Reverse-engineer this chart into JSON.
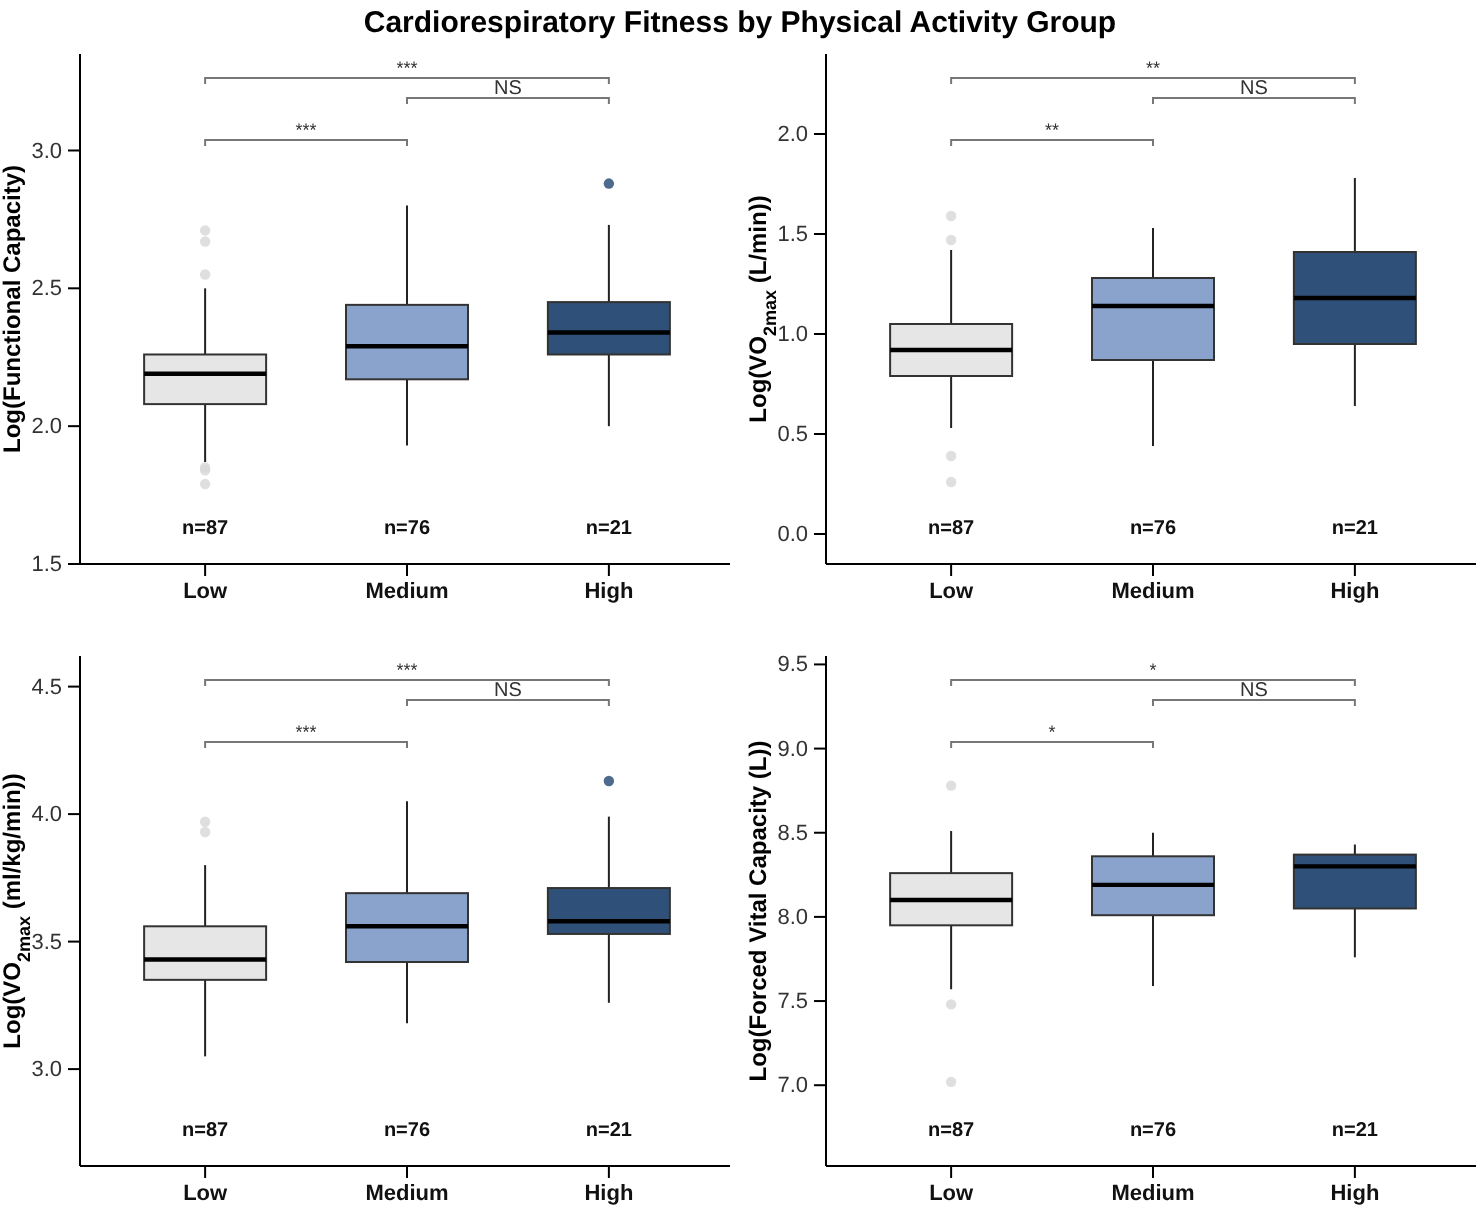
{
  "chart_data": [
    {
      "type": "box",
      "title": "Cardiorespiratory Fitness by Physical Activity Group",
      "ylabel": "Log(Functional Capacity)",
      "categories": [
        "Low",
        "Medium",
        "High"
      ],
      "colors": [
        "#e6e6e6",
        "#8aa3cc",
        "#2f5078"
      ],
      "ylim": [
        1.5,
        3.35
      ],
      "yticks": [
        1.5,
        {
          "value": 2,
          "label": "2.0"
        },
        2.5,
        {
          "value": 3,
          "label": "3.0"
        }
      ],
      "boxes": [
        {
          "low": 1.87,
          "q1": 2.08,
          "median": 2.19,
          "q3": 2.26,
          "high": 2.5,
          "outliers": [
            1.79,
            1.84,
            1.85,
            2.55,
            2.67,
            2.71
          ]
        },
        {
          "low": 1.93,
          "q1": 2.17,
          "median": 2.29,
          "q3": 2.44,
          "high": 2.8
        },
        {
          "low": 2.0,
          "q1": 2.26,
          "median": 2.34,
          "q3": 2.45,
          "high": 2.73,
          "outliers": [
            2.88
          ]
        }
      ],
      "annotations": [
        "***",
        "***",
        "NS",
        "n=87",
        "n=76",
        "n=21"
      ]
    },
    {
      "type": "box",
      "ylabel": "Log(VO$_{2max}$ (L/min))",
      "categories": [
        "Low",
        "Medium",
        "High"
      ],
      "colors": [
        "#e6e6e6",
        "#8aa3cc",
        "#2f5078"
      ],
      "ylim": [
        -0.15,
        2.4
      ],
      "yticks": [
        {
          "value": 0,
          "label": "0.0"
        },
        0.5,
        {
          "value": 1,
          "label": "1.0"
        },
        1.5,
        {
          "value": 2,
          "label": "2.0"
        }
      ],
      "boxes": [
        {
          "low": 0.53,
          "q1": 0.79,
          "median": 0.92,
          "q3": 1.05,
          "high": 1.42,
          "outliers": [
            0.26,
            0.39,
            1.47,
            1.59
          ]
        },
        {
          "low": 0.44,
          "q1": 0.87,
          "median": 1.14,
          "q3": 1.28,
          "high": 1.53
        },
        {
          "low": 0.64,
          "q1": 0.95,
          "median": 1.18,
          "q3": 1.41,
          "high": 1.78
        }
      ],
      "annotations": [
        "**",
        "**",
        "NS",
        "n=87",
        "n=76",
        "n=21"
      ]
    },
    {
      "type": "box",
      "ylabel": "Log(VO$_{2max}$ (ml/kg/min))",
      "categories": [
        "Low",
        "Medium",
        "High"
      ],
      "colors": [
        "#e6e6e6",
        "#8aa3cc",
        "#2f5078"
      ],
      "ylim": [
        2.62,
        4.62
      ],
      "yticks": [
        {
          "value": 3,
          "label": "3.0"
        },
        3.5,
        {
          "value": 4,
          "label": "4.0"
        },
        4.5
      ],
      "boxes": [
        {
          "low": 3.05,
          "q1": 3.35,
          "median": 3.43,
          "q3": 3.56,
          "high": 3.8,
          "outliers": [
            3.93,
            3.97
          ]
        },
        {
          "low": 3.18,
          "q1": 3.42,
          "median": 3.56,
          "q3": 3.69,
          "high": 4.05
        },
        {
          "low": 3.26,
          "q1": 3.53,
          "median": 3.58,
          "q3": 3.71,
          "high": 3.99,
          "outliers": [
            4.13
          ]
        }
      ],
      "annotations": [
        "***",
        "***",
        "NS",
        "n=87",
        "n=76",
        "n=21"
      ]
    },
    {
      "type": "box",
      "ylabel": "Log(Forced Vital Capacity (L))",
      "categories": [
        "Low",
        "Medium",
        "High"
      ],
      "colors": [
        "#e6e6e6",
        "#8aa3cc",
        "#2f5078"
      ],
      "ylim": [
        6.52,
        9.55
      ],
      "yticks": [
        {
          "value": 7,
          "label": "7.0"
        },
        7.5,
        {
          "value": 8,
          "label": "8.0"
        },
        8.5,
        {
          "value": 9,
          "label": "9.0"
        },
        9.5
      ],
      "boxes": [
        {
          "low": 7.57,
          "q1": 7.95,
          "median": 8.1,
          "q3": 8.26,
          "high": 8.51,
          "outliers": [
            7.02,
            7.48,
            8.78
          ]
        },
        {
          "low": 7.59,
          "q1": 8.01,
          "median": 8.19,
          "q3": 8.36,
          "high": 8.5
        },
        {
          "low": 7.76,
          "q1": 8.05,
          "median": 8.3,
          "q3": 8.37,
          "high": 8.43
        }
      ],
      "annotations": [
        "*",
        "*",
        "NS",
        "n=87",
        "n=76",
        "n=21"
      ]
    }
  ]
}
